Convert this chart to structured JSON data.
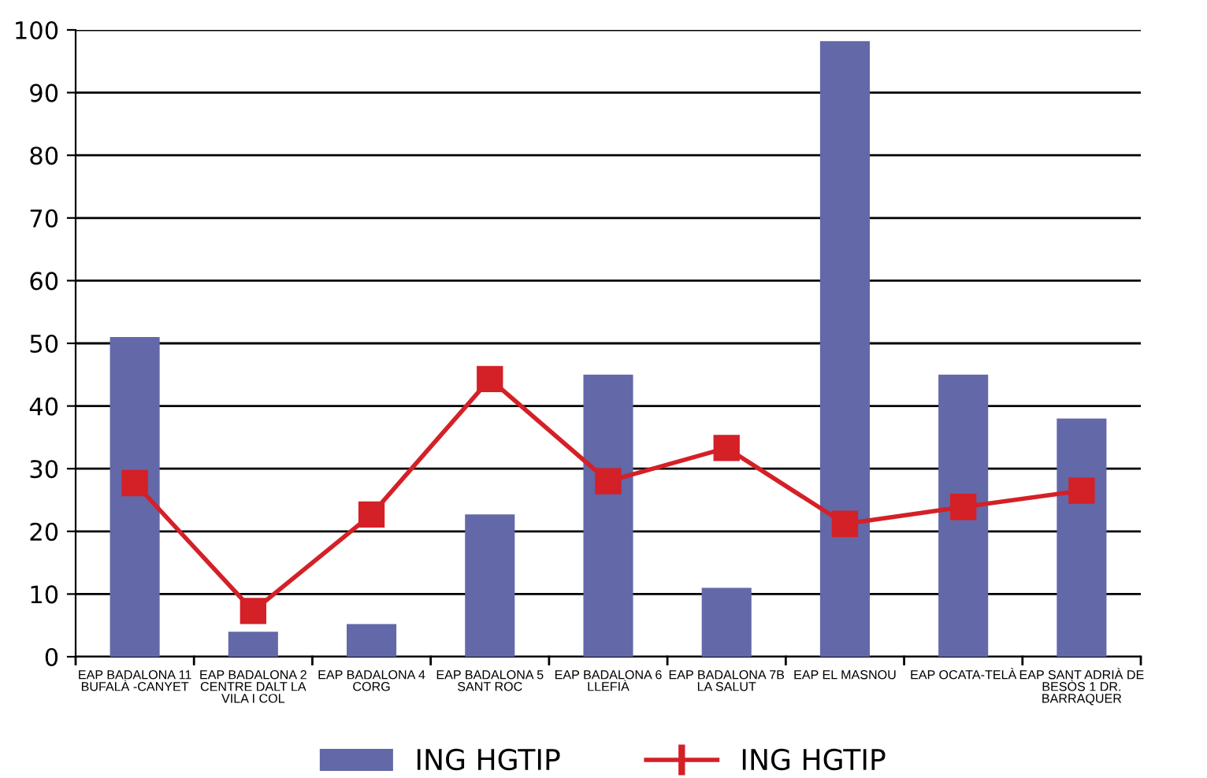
{
  "chart_data": {
    "type": "bar",
    "categories": [
      "EAP BADALONA 11\nBUFALÀ -CANYET",
      "EAP BADALONA 2\nCENTRE DALT LA\nVILA I COL",
      "EAP BADALONA 4\nCORG",
      "EAP BADALONA 5\nSANT ROC",
      "EAP BADALONA 6\nLLEFIÀ",
      "EAP BADALONA 7B\nLA SALUT",
      "EAP EL MASNOU",
      "EAP OCATA-TELÀ",
      "EAP SANT ADRIÀ DE\nBESÒS 1 DR.\nBARRAQUER"
    ],
    "series": [
      {
        "name": "ING HGTIP",
        "color": "#6268a8",
        "values": [
          51,
          4,
          5.2,
          22.7,
          45,
          11,
          98.2,
          45,
          38
        ]
      },
      {
        "name": "ING HGTIP",
        "type": "line",
        "color": "#d42027",
        "marker": "square",
        "values": [
          27.7,
          7.3,
          22.7,
          44.3,
          28,
          33.3,
          21.2,
          23.9,
          26.5
        ]
      }
    ],
    "ylim": [
      0,
      100
    ],
    "yticks": [
      0,
      10,
      20,
      30,
      40,
      50,
      60,
      70,
      80,
      90,
      100
    ],
    "grid": "y",
    "legend": "bottom"
  }
}
